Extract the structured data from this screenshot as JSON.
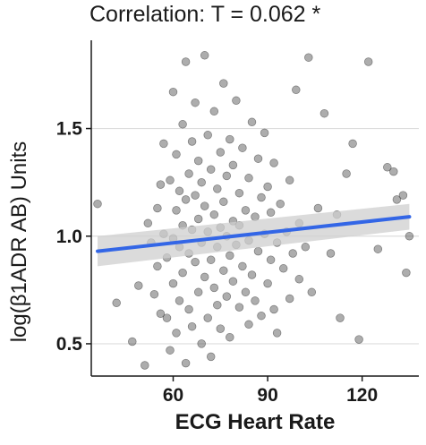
{
  "chart_data": {
    "type": "scatter",
    "title": "Correlation: T = 0.062 *",
    "xlabel": "ECG Heart Rate",
    "ylabel": "log(β1ADR AB) Units",
    "xlim": [
      34,
      138
    ],
    "ylim": [
      0.35,
      1.91
    ],
    "x_ticks": [
      60,
      90,
      120
    ],
    "x_tick_labels": [
      "60",
      "90",
      "120"
    ],
    "y_ticks": [
      0.5,
      1.0,
      1.5
    ],
    "y_tick_labels": [
      "0.5",
      "1.0",
      "1.5"
    ],
    "grid": true,
    "legend": "none",
    "point_color": "#4a4a4a",
    "line_color": "#3366e6",
    "band_color": "#cfcfcf",
    "trend": {
      "x": [
        36,
        135
      ],
      "y": [
        0.93,
        1.09
      ],
      "band_halfwidth": [
        0.07,
        0.06
      ]
    },
    "points": [
      [
        36,
        1.15
      ],
      [
        42,
        0.69
      ],
      [
        47,
        0.51
      ],
      [
        49,
        0.77
      ],
      [
        51,
        0.4
      ],
      [
        52,
        1.06
      ],
      [
        53,
        0.97
      ],
      [
        54,
        0.73
      ],
      [
        55,
        0.86
      ],
      [
        55,
        1.13
      ],
      [
        56,
        0.64
      ],
      [
        56,
        1.24
      ],
      [
        57,
        1.01
      ],
      [
        57,
        1.43
      ],
      [
        58,
        0.9
      ],
      [
        58,
        0.62
      ],
      [
        59,
        1.26
      ],
      [
        59,
        0.47
      ],
      [
        60,
        0.99
      ],
      [
        60,
        1.67
      ],
      [
        60,
        0.78
      ],
      [
        61,
        1.12
      ],
      [
        61,
        0.55
      ],
      [
        61,
        1.38
      ],
      [
        62,
        0.95
      ],
      [
        62,
        1.21
      ],
      [
        62,
        0.7
      ],
      [
        63,
        1.05
      ],
      [
        63,
        1.52
      ],
      [
        63,
        0.83
      ],
      [
        64,
        0.41
      ],
      [
        64,
        1.17
      ],
      [
        64,
        1.81
      ],
      [
        65,
        0.92
      ],
      [
        65,
        1.29
      ],
      [
        65,
        0.66
      ],
      [
        66,
        1.03
      ],
      [
        66,
        1.44
      ],
      [
        66,
        0.58
      ],
      [
        67,
        0.88
      ],
      [
        67,
        1.19
      ],
      [
        67,
        1.62
      ],
      [
        68,
        0.74
      ],
      [
        68,
        1.08
      ],
      [
        68,
        1.35
      ],
      [
        69,
        0.5
      ],
      [
        69,
        0.97
      ],
      [
        69,
        1.25
      ],
      [
        70,
        1.84
      ],
      [
        70,
        0.81
      ],
      [
        70,
        1.14
      ],
      [
        71,
        0.62
      ],
      [
        71,
        1.02
      ],
      [
        71,
        1.47
      ],
      [
        72,
        0.89
      ],
      [
        72,
        1.31
      ],
      [
        72,
        0.44
      ],
      [
        73,
        0.76
      ],
      [
        73,
        1.1
      ],
      [
        73,
        1.58
      ],
      [
        74,
        0.95
      ],
      [
        74,
        1.22
      ],
      [
        74,
        0.68
      ],
      [
        75,
        1.04
      ],
      [
        75,
        1.39
      ],
      [
        75,
        0.57
      ],
      [
        76,
        0.84
      ],
      [
        76,
        1.16
      ],
      [
        76,
        1.71
      ],
      [
        77,
        0.72
      ],
      [
        77,
        1.0
      ],
      [
        77,
        1.28
      ],
      [
        78,
        0.91
      ],
      [
        78,
        1.45
      ],
      [
        78,
        0.53
      ],
      [
        79,
        1.07
      ],
      [
        79,
        0.79
      ],
      [
        79,
        1.33
      ],
      [
        80,
        1.63
      ],
      [
        80,
        0.96
      ],
      [
        81,
        0.67
      ],
      [
        81,
        1.2
      ],
      [
        81,
        1.05
      ],
      [
        82,
        0.86
      ],
      [
        82,
        1.41
      ],
      [
        83,
        0.74
      ],
      [
        83,
        1.12
      ],
      [
        84,
        0.59
      ],
      [
        84,
        0.98
      ],
      [
        84,
        1.27
      ],
      [
        85,
        1.53
      ],
      [
        85,
        0.82
      ],
      [
        86,
        1.09
      ],
      [
        86,
        0.7
      ],
      [
        87,
        1.36
      ],
      [
        87,
        0.93
      ],
      [
        88,
        1.18
      ],
      [
        88,
        0.63
      ],
      [
        89,
        1.01
      ],
      [
        89,
        1.48
      ],
      [
        90,
        0.78
      ],
      [
        90,
        1.23
      ],
      [
        91,
        0.89
      ],
      [
        91,
        1.11
      ],
      [
        92,
        0.66
      ],
      [
        92,
        1.34
      ],
      [
        93,
        0.97
      ],
      [
        93,
        0.55
      ],
      [
        94,
        1.15
      ],
      [
        95,
        0.85
      ],
      [
        96,
        1.02
      ],
      [
        97,
        0.71
      ],
      [
        97,
        1.26
      ],
      [
        98,
        0.92
      ],
      [
        99,
        1.68
      ],
      [
        100,
        0.8
      ],
      [
        100,
        1.06
      ],
      [
        102,
        0.95
      ],
      [
        103,
        1.83
      ],
      [
        104,
        0.74
      ],
      [
        106,
        1.13
      ],
      [
        108,
        1.57
      ],
      [
        110,
        0.92
      ],
      [
        112,
        1.1
      ],
      [
        113,
        0.62
      ],
      [
        115,
        1.29
      ],
      [
        117,
        1.43
      ],
      [
        119,
        0.52
      ],
      [
        122,
        1.81
      ],
      [
        125,
        0.94
      ],
      [
        128,
        1.32
      ],
      [
        130,
        1.3
      ],
      [
        131,
        1.17
      ],
      [
        133,
        1.19
      ],
      [
        134,
        0.83
      ],
      [
        135,
        1.0
      ]
    ]
  }
}
